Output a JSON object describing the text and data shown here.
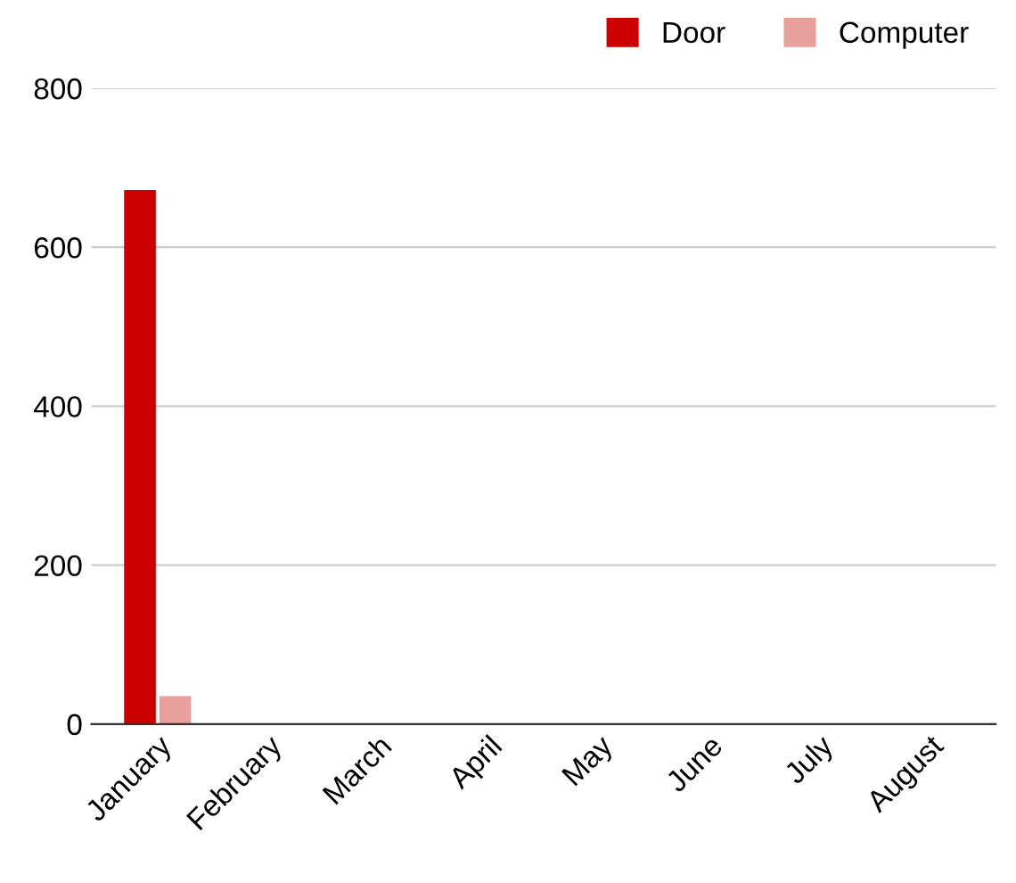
{
  "chart_data": {
    "type": "bar",
    "categories": [
      "January",
      "February",
      "March",
      "April",
      "May",
      "June",
      "July",
      "August"
    ],
    "series": [
      {
        "name": "Door",
        "color": "#cc0000",
        "values": [
          672,
          0,
          0,
          0,
          0,
          0,
          0,
          0
        ]
      },
      {
        "name": "Computer",
        "color": "#e8a09c",
        "values": [
          35,
          0,
          0,
          0,
          0,
          0,
          0,
          0
        ]
      }
    ],
    "ylim": [
      0,
      800
    ],
    "yticks": [
      0,
      200,
      400,
      600,
      800
    ],
    "grid": "y",
    "legend": "top right"
  }
}
